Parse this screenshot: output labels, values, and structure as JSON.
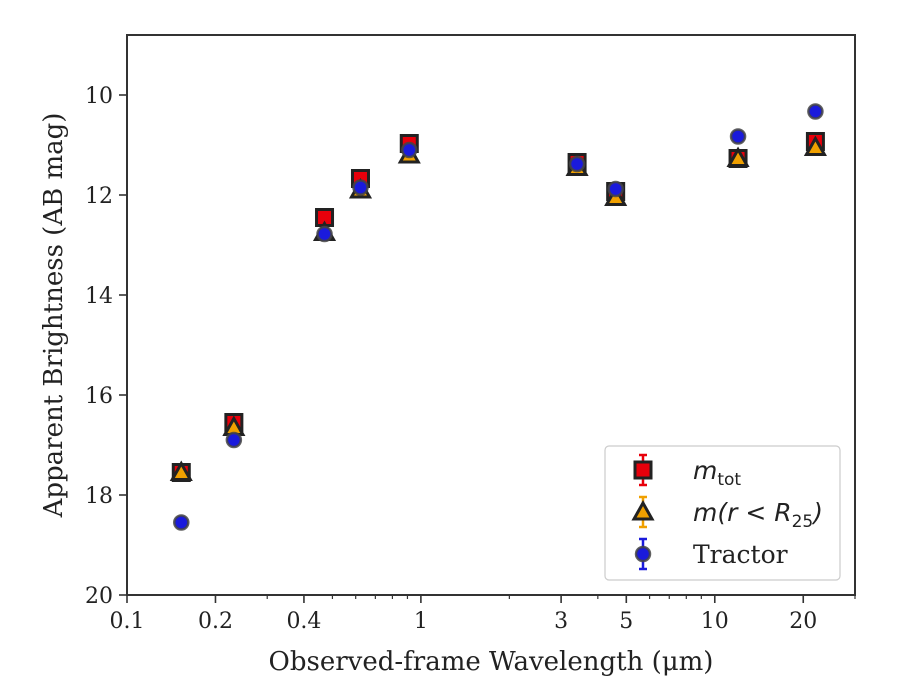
{
  "chart_data": {
    "type": "scatter",
    "title": "",
    "xlabel": "Observed-frame Wavelength (μm)",
    "ylabel": "Apparent Brightness (AB mag)",
    "xscale": "log",
    "xlim": [
      0.1,
      30
    ],
    "ylim": [
      20,
      8.8
    ],
    "y_inverted": true,
    "x_ticks": [
      {
        "value": 0.1,
        "label": "0.1"
      },
      {
        "value": 0.2,
        "label": "0.2"
      },
      {
        "value": 0.4,
        "label": "0.4"
      },
      {
        "value": 1,
        "label": "1"
      },
      {
        "value": 3,
        "label": "3"
      },
      {
        "value": 5,
        "label": "5"
      },
      {
        "value": 10,
        "label": "10"
      },
      {
        "value": 20,
        "label": "20"
      }
    ],
    "y_ticks": [
      {
        "value": 10,
        "label": "10"
      },
      {
        "value": 12,
        "label": "12"
      },
      {
        "value": 14,
        "label": "14"
      },
      {
        "value": 16,
        "label": "16"
      },
      {
        "value": 18,
        "label": "18"
      },
      {
        "value": 20,
        "label": "20"
      }
    ],
    "grid": false,
    "legend_position": "bottom-right",
    "series": [
      {
        "name": "m_tot",
        "legend_main": "m",
        "legend_sub": "tot",
        "legend_tail": "",
        "marker": "square",
        "color": "#e8000b",
        "edge_color": "#222222",
        "x": [
          0.153,
          0.231,
          0.47,
          0.623,
          0.913,
          3.4,
          4.6,
          12.0,
          22.0
        ],
        "y": [
          17.55,
          16.55,
          12.45,
          11.67,
          10.97,
          11.35,
          11.93,
          11.27,
          10.93
        ]
      },
      {
        "name": "m(r < R_25)",
        "legend_main": "m(r < R",
        "legend_sub": "25",
        "legend_tail": ")",
        "marker": "triangle",
        "color": "#f0a000",
        "edge_color": "#222222",
        "x": [
          0.153,
          0.231,
          0.47,
          0.623,
          0.913,
          3.4,
          4.6,
          12.0,
          22.0
        ],
        "y": [
          17.55,
          16.65,
          12.75,
          11.9,
          11.2,
          11.45,
          12.05,
          11.27,
          11.05
        ]
      },
      {
        "name": "Tractor",
        "legend_main": "Tractor",
        "legend_sub": "",
        "legend_tail": "",
        "marker": "circle",
        "color": "#1a1adc",
        "edge_color": "#444444",
        "x": [
          0.153,
          0.231,
          0.47,
          0.623,
          0.913,
          3.4,
          4.6,
          12.0,
          22.0
        ],
        "y": [
          18.55,
          16.9,
          12.78,
          11.85,
          11.1,
          11.38,
          11.88,
          10.83,
          10.33
        ]
      }
    ]
  }
}
